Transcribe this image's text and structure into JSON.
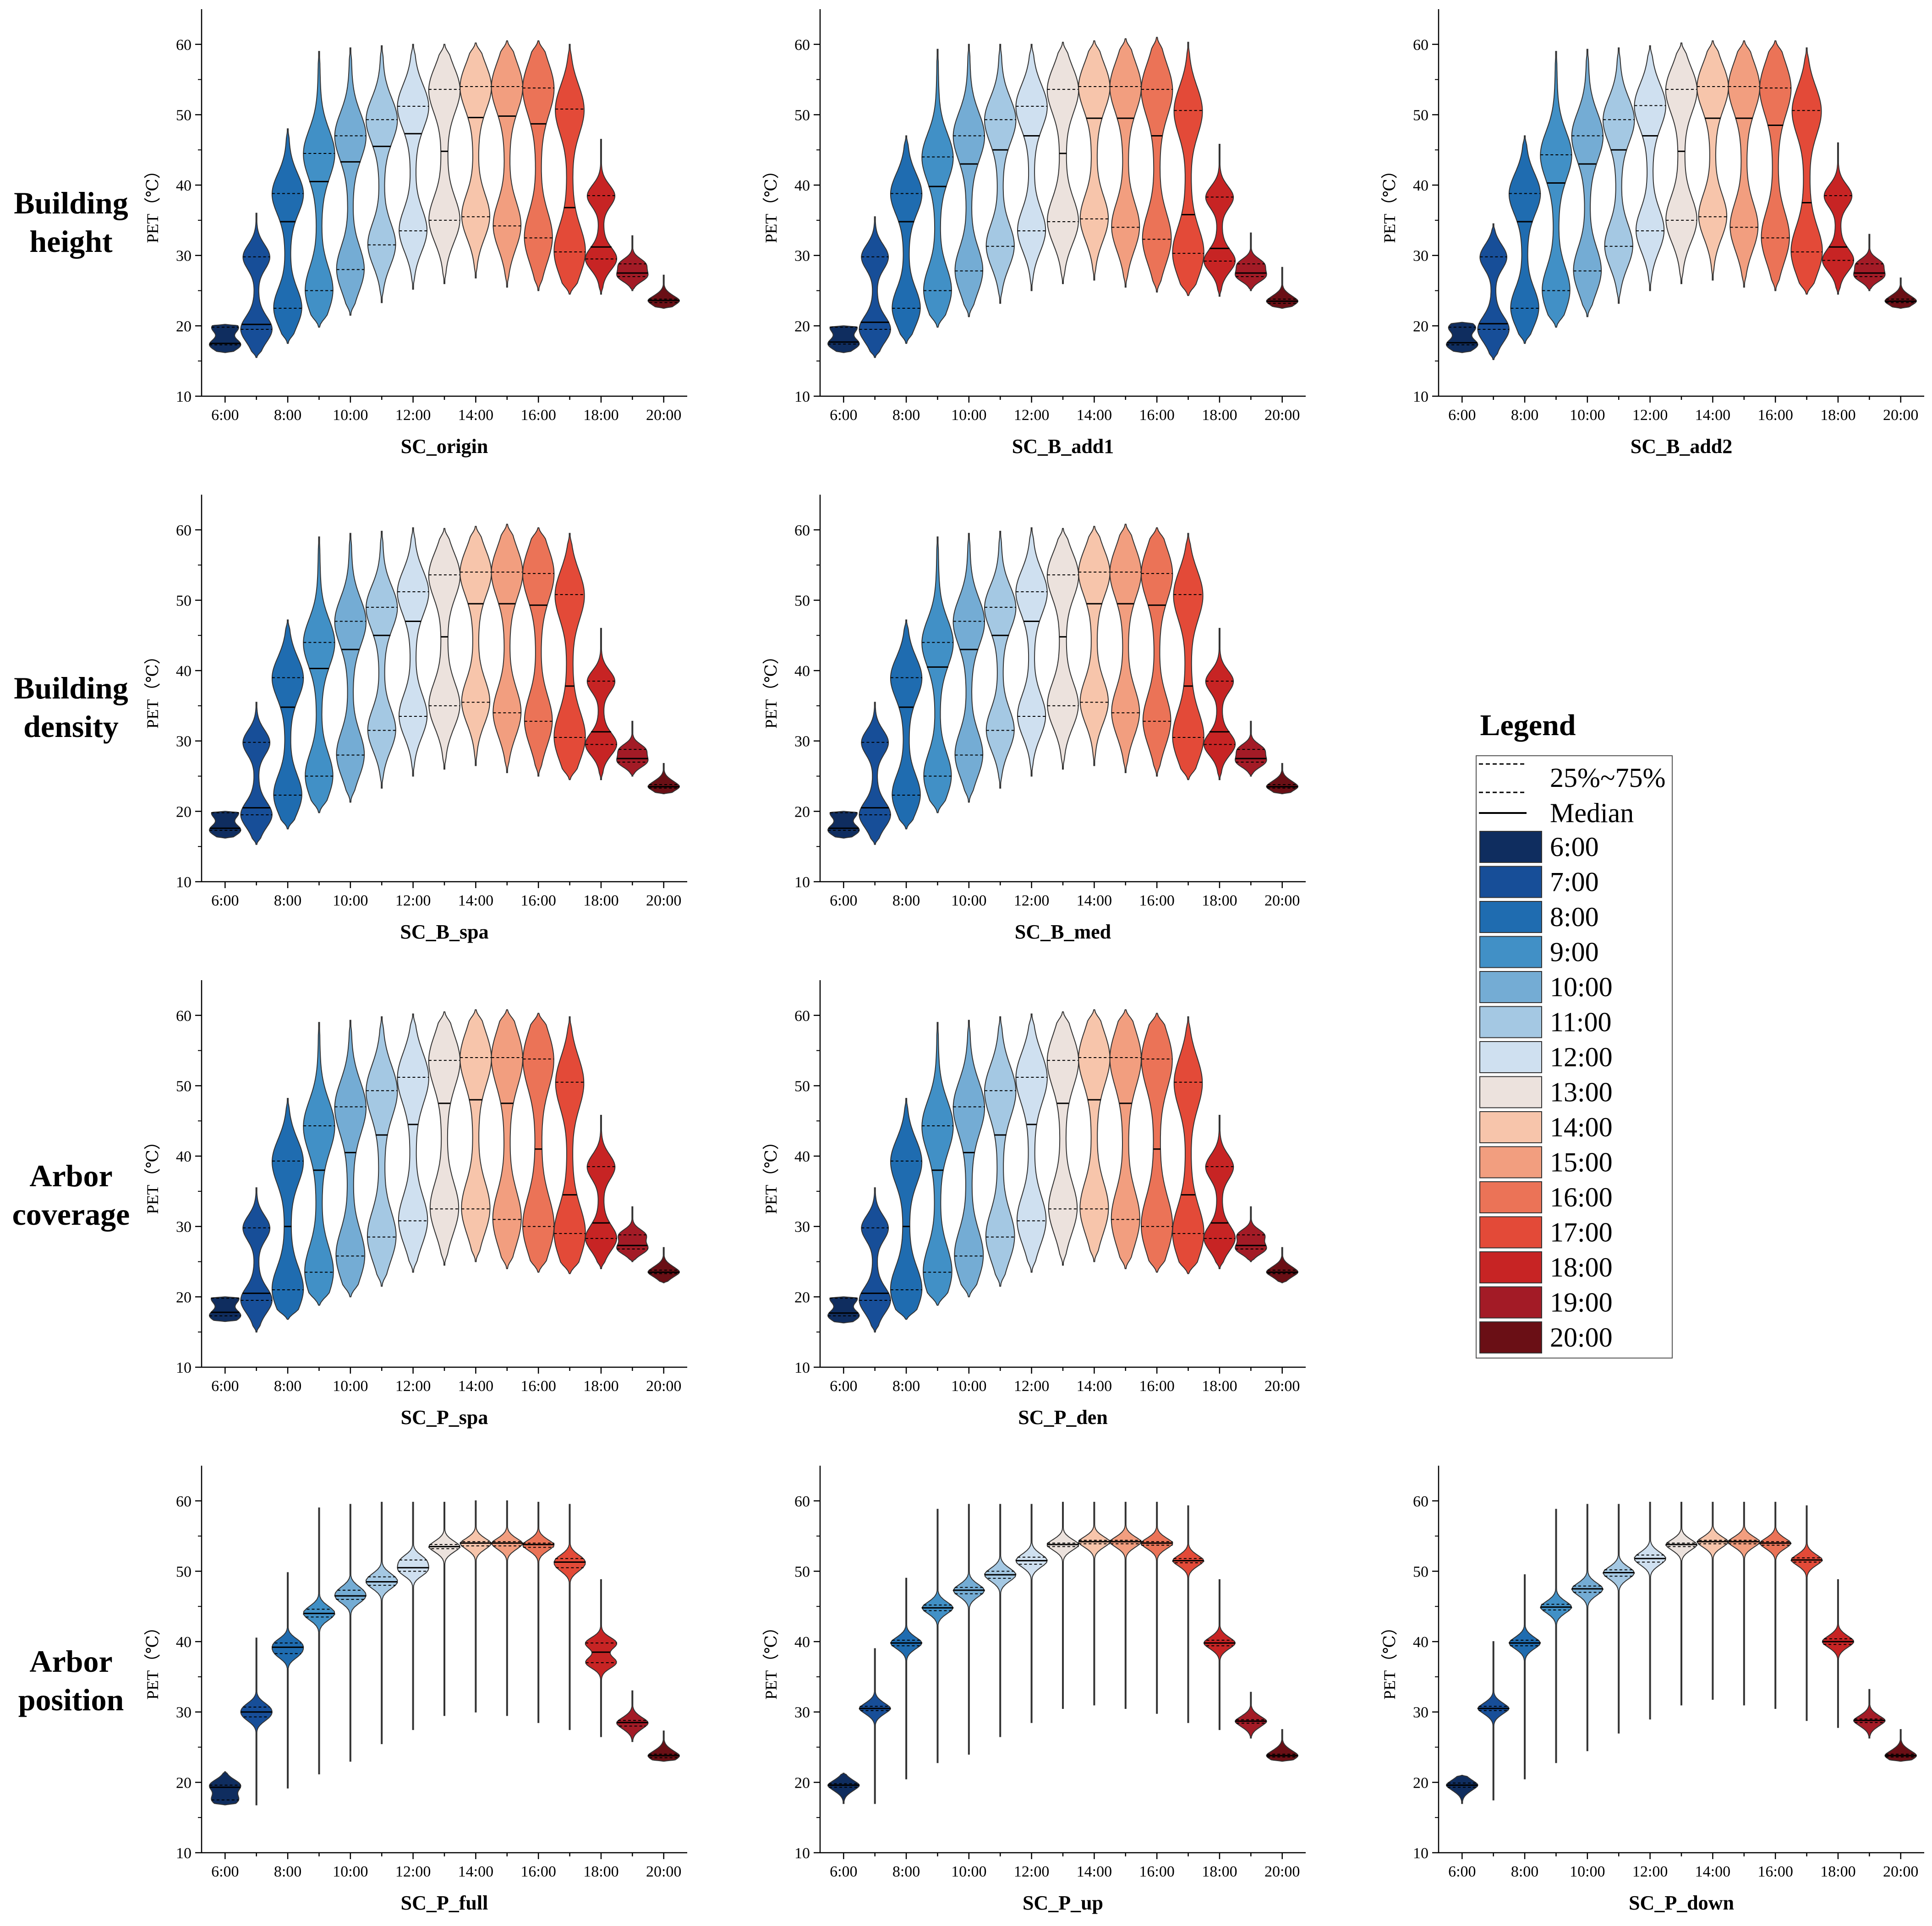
{
  "figure_labels": {
    "y_axis_label": "PET（℃）",
    "row_labels": [
      [
        "Building",
        "height"
      ],
      [
        "Building",
        "density"
      ],
      [
        "Arbor",
        "coverage"
      ],
      [
        "Arbor",
        "position"
      ]
    ]
  },
  "legend": {
    "title": "Legend",
    "quartile_label": "25%~75%",
    "median_label": "Median",
    "hours": [
      "6:00",
      "7:00",
      "8:00",
      "9:00",
      "10:00",
      "11:00",
      "12:00",
      "13:00",
      "14:00",
      "15:00",
      "16:00",
      "17:00",
      "18:00",
      "19:00",
      "20:00"
    ],
    "colors": [
      "#0f2d5f",
      "#174e98",
      "#1f6cb0",
      "#4190c6",
      "#74acd4",
      "#a4c8e3",
      "#cfe0f0",
      "#ece2dd",
      "#f7c5ab",
      "#f29e7f",
      "#eb7357",
      "#e34a38",
      "#c72424",
      "#a31b26",
      "#6a0f15"
    ]
  },
  "chart_data": [
    {
      "id": "SC_origin",
      "type": "violin",
      "title": "SC_origin",
      "ylabel": "PET（℃）",
      "ylim": [
        10,
        65
      ],
      "yticks": [
        10,
        20,
        30,
        40,
        50,
        60
      ],
      "xtick_labels": [
        "6:00",
        "8:00",
        "10:00",
        "12:00",
        "14:00",
        "16:00",
        "18:00",
        "20:00"
      ],
      "categories": [
        "6:00",
        "7:00",
        "8:00",
        "9:00",
        "10:00",
        "11:00",
        "12:00",
        "13:00",
        "14:00",
        "15:00",
        "16:00",
        "17:00",
        "18:00",
        "19:00",
        "20:00"
      ],
      "median": [
        17.5,
        20.2,
        34.8,
        40.5,
        43.3,
        45.5,
        47.3,
        44.8,
        49.6,
        49.8,
        48.7,
        36.8,
        31.2,
        27.5,
        23.6
      ],
      "q1": [
        17.3,
        19.5,
        22.5,
        25.0,
        28.0,
        31.5,
        33.5,
        35.0,
        35.5,
        34.2,
        32.5,
        30.5,
        29.5,
        27.0,
        23.3
      ],
      "q3": [
        19.8,
        29.8,
        38.8,
        44.5,
        47.0,
        49.3,
        51.2,
        53.6,
        54.0,
        54.0,
        53.8,
        50.8,
        38.5,
        28.8,
        23.8
      ],
      "min": [
        16.2,
        15.5,
        17.5,
        19.8,
        21.5,
        23.3,
        25.2,
        26.0,
        26.8,
        25.5,
        25.0,
        24.5,
        24.5,
        25.0,
        22.5
      ],
      "max": [
        20.2,
        36.0,
        48.0,
        59.0,
        59.5,
        59.8,
        60.0,
        60.0,
        60.2,
        60.5,
        60.5,
        60.0,
        46.5,
        32.8,
        27.2
      ]
    },
    {
      "id": "SC_B_add1",
      "type": "violin",
      "title": "SC_B_add1",
      "ylabel": "PET（℃）",
      "ylim": [
        10,
        65
      ],
      "yticks": [
        10,
        20,
        30,
        40,
        50,
        60
      ],
      "xtick_labels": [
        "6:00",
        "8:00",
        "10:00",
        "12:00",
        "14:00",
        "16:00",
        "18:00",
        "20:00"
      ],
      "categories": [
        "6:00",
        "7:00",
        "8:00",
        "9:00",
        "10:00",
        "11:00",
        "12:00",
        "13:00",
        "14:00",
        "15:00",
        "16:00",
        "17:00",
        "18:00",
        "19:00",
        "20:00"
      ],
      "median": [
        17.7,
        20.5,
        34.8,
        39.8,
        43.0,
        45.0,
        47.0,
        44.5,
        49.5,
        49.5,
        47.0,
        35.8,
        31.0,
        27.5,
        23.5
      ],
      "q1": [
        17.4,
        19.5,
        22.5,
        25.0,
        27.8,
        31.3,
        33.5,
        34.8,
        35.2,
        34.0,
        32.3,
        30.3,
        29.2,
        27.0,
        23.2
      ],
      "q3": [
        19.8,
        29.8,
        38.8,
        44.0,
        47.0,
        49.3,
        51.2,
        53.6,
        54.0,
        54.0,
        53.6,
        50.6,
        38.3,
        28.8,
        23.8
      ],
      "min": [
        16.2,
        15.5,
        17.5,
        19.8,
        21.3,
        23.2,
        25.0,
        26.0,
        26.5,
        25.5,
        24.8,
        24.3,
        24.2,
        25.0,
        22.5
      ],
      "max": [
        20.0,
        35.5,
        47.0,
        59.3,
        60.0,
        60.0,
        60.0,
        60.3,
        60.5,
        60.8,
        61.0,
        60.3,
        45.8,
        33.2,
        28.3
      ]
    },
    {
      "id": "SC_B_add2",
      "type": "violin",
      "title": "SC_B_add2",
      "ylabel": "PET（℃）",
      "ylim": [
        10,
        65
      ],
      "yticks": [
        10,
        20,
        30,
        40,
        50,
        60
      ],
      "xtick_labels": [
        "6:00",
        "8:00",
        "10:00",
        "12:00",
        "14:00",
        "16:00",
        "18:00",
        "20:00"
      ],
      "categories": [
        "6:00",
        "7:00",
        "8:00",
        "9:00",
        "10:00",
        "11:00",
        "12:00",
        "13:00",
        "14:00",
        "15:00",
        "16:00",
        "17:00",
        "18:00",
        "19:00",
        "20:00"
      ],
      "median": [
        17.6,
        20.3,
        34.8,
        40.3,
        43.0,
        45.0,
        47.0,
        44.8,
        49.5,
        49.5,
        48.5,
        37.5,
        31.2,
        27.5,
        23.5
      ],
      "q1": [
        17.3,
        19.5,
        22.5,
        25.0,
        27.8,
        31.3,
        33.5,
        35.0,
        35.5,
        34.0,
        32.5,
        30.5,
        29.3,
        27.0,
        23.3
      ],
      "q3": [
        19.8,
        29.8,
        38.8,
        44.3,
        47.0,
        49.3,
        51.3,
        53.6,
        54.0,
        54.0,
        53.8,
        50.6,
        38.5,
        28.8,
        23.8
      ],
      "min": [
        16.2,
        15.2,
        17.5,
        19.8,
        21.3,
        23.2,
        25.0,
        26.0,
        26.5,
        25.5,
        25.0,
        24.5,
        24.5,
        25.0,
        22.5
      ],
      "max": [
        20.5,
        34.5,
        47.0,
        59.0,
        59.3,
        59.5,
        59.8,
        60.2,
        60.5,
        60.5,
        60.5,
        59.5,
        46.0,
        33.0,
        26.8
      ]
    },
    {
      "id": "SC_B_spa",
      "type": "violin",
      "title": "SC_B_spa",
      "ylabel": "PET（℃）",
      "ylim": [
        10,
        65
      ],
      "yticks": [
        10,
        20,
        30,
        40,
        50,
        60
      ],
      "xtick_labels": [
        "6:00",
        "8:00",
        "10:00",
        "12:00",
        "14:00",
        "16:00",
        "18:00",
        "20:00"
      ],
      "categories": [
        "6:00",
        "7:00",
        "8:00",
        "9:00",
        "10:00",
        "11:00",
        "12:00",
        "13:00",
        "14:00",
        "15:00",
        "16:00",
        "17:00",
        "18:00",
        "19:00",
        "20:00"
      ],
      "median": [
        17.6,
        20.5,
        34.8,
        40.3,
        43.0,
        45.0,
        47.0,
        44.8,
        49.5,
        49.5,
        49.3,
        37.8,
        31.3,
        27.5,
        23.5
      ],
      "q1": [
        17.3,
        19.5,
        22.3,
        25.0,
        28.0,
        31.5,
        33.5,
        35.0,
        35.5,
        34.0,
        32.8,
        30.5,
        29.5,
        27.0,
        23.3
      ],
      "q3": [
        19.8,
        29.8,
        39.0,
        44.0,
        47.0,
        49.0,
        51.2,
        53.6,
        54.0,
        54.0,
        53.8,
        50.8,
        38.5,
        28.8,
        23.8
      ],
      "min": [
        16.2,
        15.3,
        17.5,
        19.8,
        21.3,
        23.3,
        25.0,
        26.0,
        26.5,
        25.5,
        25.0,
        24.5,
        24.5,
        25.0,
        22.5
      ],
      "max": [
        20.0,
        35.5,
        47.2,
        59.0,
        59.5,
        59.8,
        60.3,
        60.2,
        60.5,
        60.8,
        60.3,
        59.5,
        46.0,
        32.8,
        26.8
      ]
    },
    {
      "id": "SC_B_med",
      "type": "violin",
      "title": "SC_B_med",
      "ylabel": "PET（℃）",
      "ylim": [
        10,
        65
      ],
      "yticks": [
        10,
        20,
        30,
        40,
        50,
        60
      ],
      "xtick_labels": [
        "6:00",
        "8:00",
        "10:00",
        "12:00",
        "14:00",
        "16:00",
        "18:00",
        "20:00"
      ],
      "categories": [
        "6:00",
        "7:00",
        "8:00",
        "9:00",
        "10:00",
        "11:00",
        "12:00",
        "13:00",
        "14:00",
        "15:00",
        "16:00",
        "17:00",
        "18:00",
        "19:00",
        "20:00"
      ],
      "median": [
        17.6,
        20.5,
        34.8,
        40.5,
        43.0,
        45.0,
        47.0,
        44.8,
        49.5,
        49.5,
        49.3,
        37.8,
        31.3,
        27.5,
        23.5
      ],
      "q1": [
        17.3,
        19.5,
        22.3,
        25.0,
        28.0,
        31.5,
        33.5,
        35.0,
        35.5,
        34.0,
        32.8,
        30.5,
        29.5,
        27.0,
        23.3
      ],
      "q3": [
        19.8,
        29.8,
        39.0,
        44.0,
        47.0,
        49.0,
        51.2,
        53.6,
        54.0,
        54.0,
        53.8,
        50.8,
        38.5,
        28.8,
        23.8
      ],
      "min": [
        16.2,
        15.3,
        17.5,
        19.8,
        21.3,
        23.3,
        25.0,
        26.0,
        26.5,
        25.5,
        25.0,
        24.5,
        24.5,
        25.0,
        22.5
      ],
      "max": [
        20.0,
        35.5,
        47.2,
        59.0,
        59.5,
        59.8,
        60.3,
        60.2,
        60.5,
        60.8,
        60.3,
        59.5,
        46.0,
        32.8,
        26.8
      ]
    },
    {
      "id": "SC_P_spa",
      "type": "violin",
      "title": "SC_P_spa",
      "ylabel": "PET（℃）",
      "ylim": [
        10,
        65
      ],
      "yticks": [
        10,
        20,
        30,
        40,
        50,
        60
      ],
      "xtick_labels": [
        "6:00",
        "8:00",
        "10:00",
        "12:00",
        "14:00",
        "16:00",
        "18:00",
        "20:00"
      ],
      "categories": [
        "6:00",
        "7:00",
        "8:00",
        "9:00",
        "10:00",
        "11:00",
        "12:00",
        "13:00",
        "14:00",
        "15:00",
        "16:00",
        "17:00",
        "18:00",
        "19:00",
        "20:00"
      ],
      "median": [
        17.8,
        20.5,
        30.0,
        38.0,
        40.5,
        43.0,
        44.5,
        47.5,
        48.0,
        47.5,
        41.0,
        34.5,
        30.5,
        27.3,
        23.5
      ],
      "q1": [
        17.3,
        19.5,
        21.0,
        23.5,
        25.8,
        28.5,
        30.8,
        32.5,
        32.5,
        31.0,
        30.0,
        29.0,
        28.3,
        26.8,
        23.3
      ],
      "q3": [
        19.8,
        29.8,
        39.3,
        44.3,
        47.0,
        49.3,
        51.2,
        53.6,
        54.0,
        54.0,
        53.8,
        50.5,
        38.5,
        28.8,
        23.8
      ],
      "min": [
        16.5,
        15.0,
        16.8,
        18.8,
        20.0,
        21.5,
        23.5,
        24.5,
        25.0,
        24.0,
        23.5,
        23.3,
        24.0,
        25.0,
        22.0
      ],
      "max": [
        20.0,
        35.5,
        48.2,
        59.0,
        59.3,
        59.8,
        60.2,
        60.5,
        60.8,
        60.8,
        60.3,
        59.8,
        45.8,
        32.8,
        27.0
      ]
    },
    {
      "id": "SC_P_den",
      "type": "violin",
      "title": "SC_P_den",
      "ylabel": "PET（℃）",
      "ylim": [
        10,
        65
      ],
      "yticks": [
        10,
        20,
        30,
        40,
        50,
        60
      ],
      "xtick_labels": [
        "6:00",
        "8:00",
        "10:00",
        "12:00",
        "14:00",
        "16:00",
        "18:00",
        "20:00"
      ],
      "categories": [
        "6:00",
        "7:00",
        "8:00",
        "9:00",
        "10:00",
        "11:00",
        "12:00",
        "13:00",
        "14:00",
        "15:00",
        "16:00",
        "17:00",
        "18:00",
        "19:00",
        "20:00"
      ],
      "median": [
        17.7,
        20.5,
        30.0,
        38.0,
        40.5,
        43.0,
        44.5,
        47.5,
        48.0,
        47.5,
        41.0,
        34.5,
        30.5,
        27.3,
        23.5
      ],
      "q1": [
        17.3,
        19.5,
        21.0,
        23.5,
        25.8,
        28.5,
        30.8,
        32.5,
        32.5,
        31.0,
        30.0,
        29.0,
        28.3,
        26.8,
        23.3
      ],
      "q3": [
        19.8,
        29.8,
        39.3,
        44.3,
        47.0,
        49.3,
        51.2,
        53.6,
        54.0,
        54.0,
        53.8,
        50.5,
        38.5,
        28.8,
        23.8
      ],
      "min": [
        16.3,
        15.0,
        16.8,
        18.8,
        20.0,
        21.5,
        23.5,
        24.5,
        25.0,
        24.0,
        23.5,
        23.3,
        24.0,
        25.0,
        22.0
      ],
      "max": [
        20.0,
        35.5,
        48.2,
        59.0,
        59.3,
        59.8,
        60.2,
        60.5,
        60.8,
        60.8,
        60.3,
        59.8,
        45.8,
        32.8,
        27.0
      ]
    },
    {
      "id": "SC_P_full",
      "type": "violin",
      "title": "SC_P_full",
      "ylabel": "PET（℃）",
      "ylim": [
        10,
        65
      ],
      "yticks": [
        10,
        20,
        30,
        40,
        50,
        60
      ],
      "xtick_labels": [
        "6:00",
        "8:00",
        "10:00",
        "12:00",
        "14:00",
        "16:00",
        "18:00",
        "20:00"
      ],
      "categories": [
        "6:00",
        "7:00",
        "8:00",
        "9:00",
        "10:00",
        "11:00",
        "12:00",
        "13:00",
        "14:00",
        "15:00",
        "16:00",
        "17:00",
        "18:00",
        "19:00",
        "20:00"
      ],
      "median": [
        19.3,
        30.0,
        39.2,
        44.0,
        46.5,
        48.5,
        50.5,
        53.5,
        54.0,
        54.0,
        53.8,
        51.3,
        38.5,
        28.5,
        23.8
      ],
      "q1": [
        17.5,
        29.3,
        38.3,
        43.5,
        46.0,
        48.0,
        50.0,
        53.2,
        53.6,
        53.6,
        53.4,
        50.5,
        37.0,
        28.0,
        23.5
      ],
      "q3": [
        19.6,
        30.7,
        39.8,
        44.6,
        47.3,
        49.2,
        51.6,
        53.8,
        54.2,
        54.2,
        54.0,
        51.8,
        39.8,
        28.8,
        24.0
      ],
      "min": [
        16.8,
        16.8,
        19.2,
        21.2,
        23.0,
        25.5,
        27.5,
        29.5,
        30.0,
        29.5,
        28.5,
        27.5,
        26.5,
        25.8,
        23.0
      ],
      "max": [
        21.5,
        40.5,
        49.8,
        59.0,
        59.5,
        59.8,
        59.8,
        59.8,
        60.0,
        60.0,
        59.8,
        59.5,
        48.8,
        33.0,
        27.3
      ]
    },
    {
      "id": "SC_P_up",
      "type": "violin",
      "title": "SC_P_up",
      "ylabel": "PET（℃）",
      "ylim": [
        10,
        65
      ],
      "yticks": [
        10,
        20,
        30,
        40,
        50,
        60
      ],
      "xtick_labels": [
        "6:00",
        "8:00",
        "10:00",
        "12:00",
        "14:00",
        "16:00",
        "18:00",
        "20:00"
      ],
      "categories": [
        "6:00",
        "7:00",
        "8:00",
        "9:00",
        "10:00",
        "11:00",
        "12:00",
        "13:00",
        "14:00",
        "15:00",
        "16:00",
        "17:00",
        "18:00",
        "19:00",
        "20:00"
      ],
      "median": [
        19.6,
        30.5,
        39.8,
        44.8,
        47.3,
        49.5,
        51.5,
        53.8,
        54.2,
        54.2,
        54.0,
        51.5,
        39.8,
        28.7,
        23.8
      ],
      "q1": [
        19.3,
        30.2,
        39.4,
        44.4,
        46.8,
        49.0,
        51.0,
        53.5,
        53.9,
        53.9,
        53.7,
        51.2,
        39.4,
        28.4,
        23.6
      ],
      "q3": [
        19.8,
        30.8,
        40.2,
        45.2,
        47.7,
        50.0,
        52.0,
        54.0,
        54.4,
        54.4,
        54.2,
        51.8,
        40.2,
        28.9,
        24.0
      ],
      "min": [
        17.0,
        17.0,
        20.5,
        22.8,
        24.0,
        26.5,
        28.5,
        30.5,
        31.0,
        30.5,
        29.8,
        28.5,
        27.5,
        26.3,
        23.0
      ],
      "max": [
        21.3,
        39.0,
        49.0,
        58.8,
        59.5,
        59.5,
        59.5,
        59.8,
        59.8,
        59.8,
        59.8,
        59.3,
        48.8,
        32.8,
        27.5
      ]
    },
    {
      "id": "SC_P_down",
      "type": "violin",
      "title": "SC_P_down",
      "ylabel": "PET（℃）",
      "ylim": [
        10,
        65
      ],
      "yticks": [
        10,
        20,
        30,
        40,
        50,
        60
      ],
      "xtick_labels": [
        "6:00",
        "8:00",
        "10:00",
        "12:00",
        "14:00",
        "16:00",
        "18:00",
        "20:00"
      ],
      "categories": [
        "6:00",
        "7:00",
        "8:00",
        "9:00",
        "10:00",
        "11:00",
        "12:00",
        "13:00",
        "14:00",
        "15:00",
        "16:00",
        "17:00",
        "18:00",
        "19:00",
        "20:00"
      ],
      "median": [
        19.6,
        30.5,
        39.8,
        44.9,
        47.5,
        49.8,
        51.8,
        53.8,
        54.2,
        54.2,
        54.0,
        51.6,
        40.0,
        28.8,
        23.8
      ],
      "q1": [
        19.3,
        30.2,
        39.4,
        44.5,
        47.0,
        49.3,
        51.3,
        53.5,
        53.9,
        53.9,
        53.7,
        51.3,
        39.6,
        28.5,
        23.6
      ],
      "q3": [
        19.9,
        30.8,
        40.2,
        45.3,
        47.9,
        50.2,
        52.3,
        54.0,
        54.4,
        54.4,
        54.2,
        51.9,
        40.4,
        29.0,
        24.0
      ],
      "min": [
        17.0,
        17.5,
        20.5,
        22.8,
        24.5,
        27.0,
        29.0,
        31.0,
        31.8,
        31.0,
        30.5,
        28.8,
        27.8,
        26.3,
        23.0
      ],
      "max": [
        21.0,
        40.0,
        49.5,
        58.8,
        59.5,
        59.5,
        59.8,
        59.8,
        59.8,
        59.8,
        59.8,
        59.3,
        48.8,
        33.2,
        27.5
      ]
    }
  ]
}
